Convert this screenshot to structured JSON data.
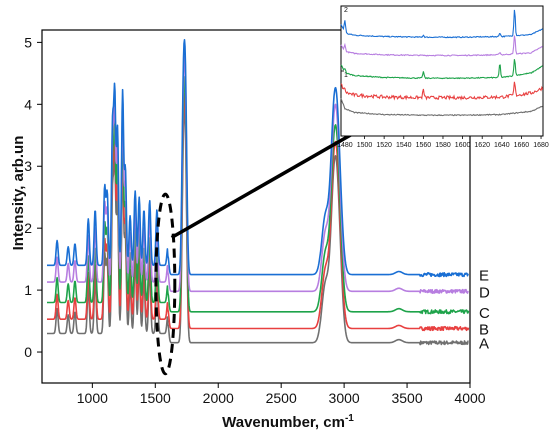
{
  "chart_data": [
    {
      "type": "line",
      "title": "",
      "xlabel": "Wavenumber, cm",
      "xlabel_superscript": "-1",
      "ylabel": "Intensity, arb.un",
      "xlim": [
        600,
        4000
      ],
      "ylim": [
        -0.5,
        5.2
      ],
      "xticks": [
        "1000",
        "1500",
        "2000",
        "2500",
        "3000",
        "3500",
        "4000"
      ],
      "xtick_values": [
        1000,
        1500,
        2000,
        2500,
        3000,
        3500,
        4000
      ],
      "yticks": [
        "0",
        "1",
        "2",
        "3",
        "4",
        "5"
      ],
      "ytick_values": [
        0,
        1,
        2,
        3,
        4,
        5
      ],
      "grid": false,
      "series": [
        {
          "name": "A",
          "color": "#707070",
          "offset": 0.15,
          "peaks": [
            [
              720,
              0.4
            ],
            [
              808,
              0.3
            ],
            [
              862,
              0.35
            ],
            [
              968,
              0.75
            ],
            [
              1022,
              0.9
            ],
            [
              1098,
              1.25
            ],
            [
              1118,
              1.15
            ],
            [
              1160,
              2.2
            ],
            [
              1178,
              2.7
            ],
            [
              1200,
              2.2
            ],
            [
              1240,
              2.8
            ],
            [
              1262,
              1.55
            ],
            [
              1300,
              0.8
            ],
            [
              1340,
              1.2
            ],
            [
              1372,
              1.1
            ],
            [
              1410,
              0.9
            ],
            [
              1455,
              1.05
            ],
            [
              1513,
              0.9
            ],
            [
              1600,
              0.3
            ],
            [
              1722,
              2.6
            ],
            [
              1740,
              2.7
            ],
            [
              2850,
              0.9
            ],
            [
              2920,
              2.2
            ],
            [
              2955,
              1.4
            ],
            [
              3435,
              0.05
            ]
          ]
        },
        {
          "name": "B",
          "color": "#e84040",
          "offset": 0.38,
          "peaks": [
            [
              720,
              0.4
            ],
            [
              808,
              0.3
            ],
            [
              862,
              0.35
            ],
            [
              968,
              0.75
            ],
            [
              1022,
              0.9
            ],
            [
              1098,
              1.25
            ],
            [
              1118,
              1.15
            ],
            [
              1160,
              2.2
            ],
            [
              1178,
              2.7
            ],
            [
              1200,
              2.2
            ],
            [
              1240,
              2.8
            ],
            [
              1262,
              1.55
            ],
            [
              1300,
              0.8
            ],
            [
              1340,
              1.2
            ],
            [
              1372,
              1.1
            ],
            [
              1410,
              0.9
            ],
            [
              1455,
              1.05
            ],
            [
              1513,
              0.9
            ],
            [
              1600,
              0.3
            ],
            [
              1722,
              2.6
            ],
            [
              1740,
              2.7
            ],
            [
              2850,
              0.9
            ],
            [
              2920,
              2.2
            ],
            [
              2955,
              1.4
            ],
            [
              3435,
              0.05
            ]
          ]
        },
        {
          "name": "C",
          "color": "#1ea34a",
          "offset": 0.65,
          "peaks": [
            [
              720,
              0.4
            ],
            [
              808,
              0.3
            ],
            [
              862,
              0.35
            ],
            [
              968,
              0.75
            ],
            [
              1022,
              0.9
            ],
            [
              1098,
              1.25
            ],
            [
              1118,
              1.15
            ],
            [
              1160,
              2.2
            ],
            [
              1178,
              2.7
            ],
            [
              1200,
              2.2
            ],
            [
              1240,
              2.8
            ],
            [
              1262,
              1.55
            ],
            [
              1300,
              0.8
            ],
            [
              1340,
              1.2
            ],
            [
              1372,
              1.1
            ],
            [
              1410,
              0.9
            ],
            [
              1455,
              1.05
            ],
            [
              1513,
              0.9
            ],
            [
              1600,
              0.3
            ],
            [
              1722,
              2.6
            ],
            [
              1740,
              2.7
            ],
            [
              2850,
              0.9
            ],
            [
              2920,
              2.2
            ],
            [
              2955,
              1.4
            ],
            [
              3435,
              0.05
            ]
          ]
        },
        {
          "name": "D",
          "color": "#b77ee0",
          "offset": 0.98,
          "peaks": [
            [
              720,
              0.4
            ],
            [
              808,
              0.3
            ],
            [
              862,
              0.35
            ],
            [
              968,
              0.75
            ],
            [
              1022,
              0.9
            ],
            [
              1098,
              1.25
            ],
            [
              1118,
              1.15
            ],
            [
              1160,
              2.2
            ],
            [
              1178,
              2.7
            ],
            [
              1200,
              2.2
            ],
            [
              1240,
              2.8
            ],
            [
              1262,
              1.55
            ],
            [
              1300,
              0.8
            ],
            [
              1340,
              1.2
            ],
            [
              1372,
              1.1
            ],
            [
              1410,
              0.9
            ],
            [
              1455,
              1.05
            ],
            [
              1513,
              0.9
            ],
            [
              1600,
              0.3
            ],
            [
              1722,
              2.6
            ],
            [
              1740,
              2.7
            ],
            [
              2850,
              0.9
            ],
            [
              2920,
              2.2
            ],
            [
              2955,
              1.4
            ],
            [
              3435,
              0.05
            ]
          ]
        },
        {
          "name": "E",
          "color": "#1a6fd4",
          "offset": 1.25,
          "peaks": [
            [
              720,
              0.4
            ],
            [
              808,
              0.3
            ],
            [
              862,
              0.35
            ],
            [
              968,
              0.75
            ],
            [
              1022,
              0.9
            ],
            [
              1098,
              1.25
            ],
            [
              1118,
              1.15
            ],
            [
              1160,
              2.2
            ],
            [
              1178,
              2.7
            ],
            [
              1200,
              2.2
            ],
            [
              1240,
              2.8
            ],
            [
              1262,
              1.55
            ],
            [
              1300,
              0.8
            ],
            [
              1340,
              1.2
            ],
            [
              1372,
              1.1
            ],
            [
              1410,
              0.9
            ],
            [
              1455,
              1.05
            ],
            [
              1513,
              0.9
            ],
            [
              1600,
              0.3
            ],
            [
              1722,
              2.6
            ],
            [
              1740,
              2.7
            ],
            [
              2850,
              0.9
            ],
            [
              2920,
              2.2
            ],
            [
              2955,
              1.4
            ],
            [
              3435,
              0.05
            ]
          ]
        }
      ],
      "annotations": [
        {
          "type": "dashed-ellipse",
          "center": [
            1580,
            1.1
          ],
          "x_halfwidth": 75,
          "y_halfheight": 1.45
        },
        {
          "type": "arrow",
          "from": [
            1630,
            1.85
          ],
          "to": [
            3950,
            4.55
          ]
        }
      ]
    },
    {
      "type": "line",
      "role": "inset",
      "title": "",
      "xlim": [
        1476,
        1682
      ],
      "ylim": [
        0,
        2
      ],
      "xticks": [
        "1480",
        "1500",
        "1520",
        "1540",
        "1560",
        "1580",
        "1600",
        "1620",
        "1640",
        "1660",
        "1680"
      ],
      "xtick_values": [
        1480,
        1500,
        1520,
        1540,
        1560,
        1580,
        1600,
        1620,
        1640,
        1660,
        1680
      ],
      "yticks": [
        "1",
        "2"
      ],
      "ytick_values": [
        1,
        2
      ],
      "series": [
        {
          "name": "E",
          "color": "#1a6fd4",
          "points": [
            [
              1476,
              1.72
            ],
            [
              1480,
              1.58
            ],
            [
              1490,
              1.55
            ],
            [
              1520,
              1.53
            ],
            [
              1560,
              1.52
            ],
            [
              1600,
              1.52
            ],
            [
              1640,
              1.53
            ],
            [
              1670,
              1.56
            ],
            [
              1682,
              1.65
            ]
          ],
          "spikes": [
            [
              1480,
              0.2
            ],
            [
              1560,
              0.03
            ],
            [
              1638,
              0.06
            ],
            [
              1653,
              0.42
            ]
          ]
        },
        {
          "name": "D",
          "color": "#b77ee0",
          "points": [
            [
              1476,
              1.4
            ],
            [
              1480,
              1.3
            ],
            [
              1490,
              1.27
            ],
            [
              1520,
              1.25
            ],
            [
              1560,
              1.24
            ],
            [
              1600,
              1.24
            ],
            [
              1640,
              1.25
            ],
            [
              1670,
              1.28
            ],
            [
              1682,
              1.38
            ]
          ],
          "spikes": [
            [
              1480,
              0.1
            ],
            [
              1638,
              0.04
            ],
            [
              1653,
              0.3
            ]
          ]
        },
        {
          "name": "C",
          "color": "#1ea34a",
          "points": [
            [
              1476,
              1.1
            ],
            [
              1480,
              0.97
            ],
            [
              1490,
              0.93
            ],
            [
              1520,
              0.9
            ],
            [
              1560,
              0.89
            ],
            [
              1600,
              0.89
            ],
            [
              1640,
              0.9
            ],
            [
              1670,
              0.97
            ],
            [
              1682,
              1.08
            ]
          ],
          "spikes": [
            [
              1480,
              0.07
            ],
            [
              1560,
              0.1
            ],
            [
              1638,
              0.22
            ],
            [
              1653,
              0.27
            ]
          ]
        },
        {
          "name": "B",
          "color": "#e84040",
          "points": [
            [
              1476,
              0.8
            ],
            [
              1480,
              0.67
            ],
            [
              1490,
              0.63
            ],
            [
              1520,
              0.6
            ],
            [
              1560,
              0.59
            ],
            [
              1600,
              0.59
            ],
            [
              1640,
              0.6
            ],
            [
              1670,
              0.66
            ],
            [
              1682,
              0.74
            ]
          ],
          "spikes": [
            [
              1480,
              0.05
            ],
            [
              1560,
              0.12
            ],
            [
              1653,
              0.2
            ]
          ]
        },
        {
          "name": "A",
          "color": "#707070",
          "points": [
            [
              1476,
              0.58
            ],
            [
              1480,
              0.42
            ],
            [
              1490,
              0.36
            ],
            [
              1520,
              0.33
            ],
            [
              1560,
              0.32
            ],
            [
              1600,
              0.32
            ],
            [
              1640,
              0.33
            ],
            [
              1670,
              0.38
            ],
            [
              1682,
              0.46
            ]
          ],
          "spikes": []
        }
      ]
    }
  ]
}
